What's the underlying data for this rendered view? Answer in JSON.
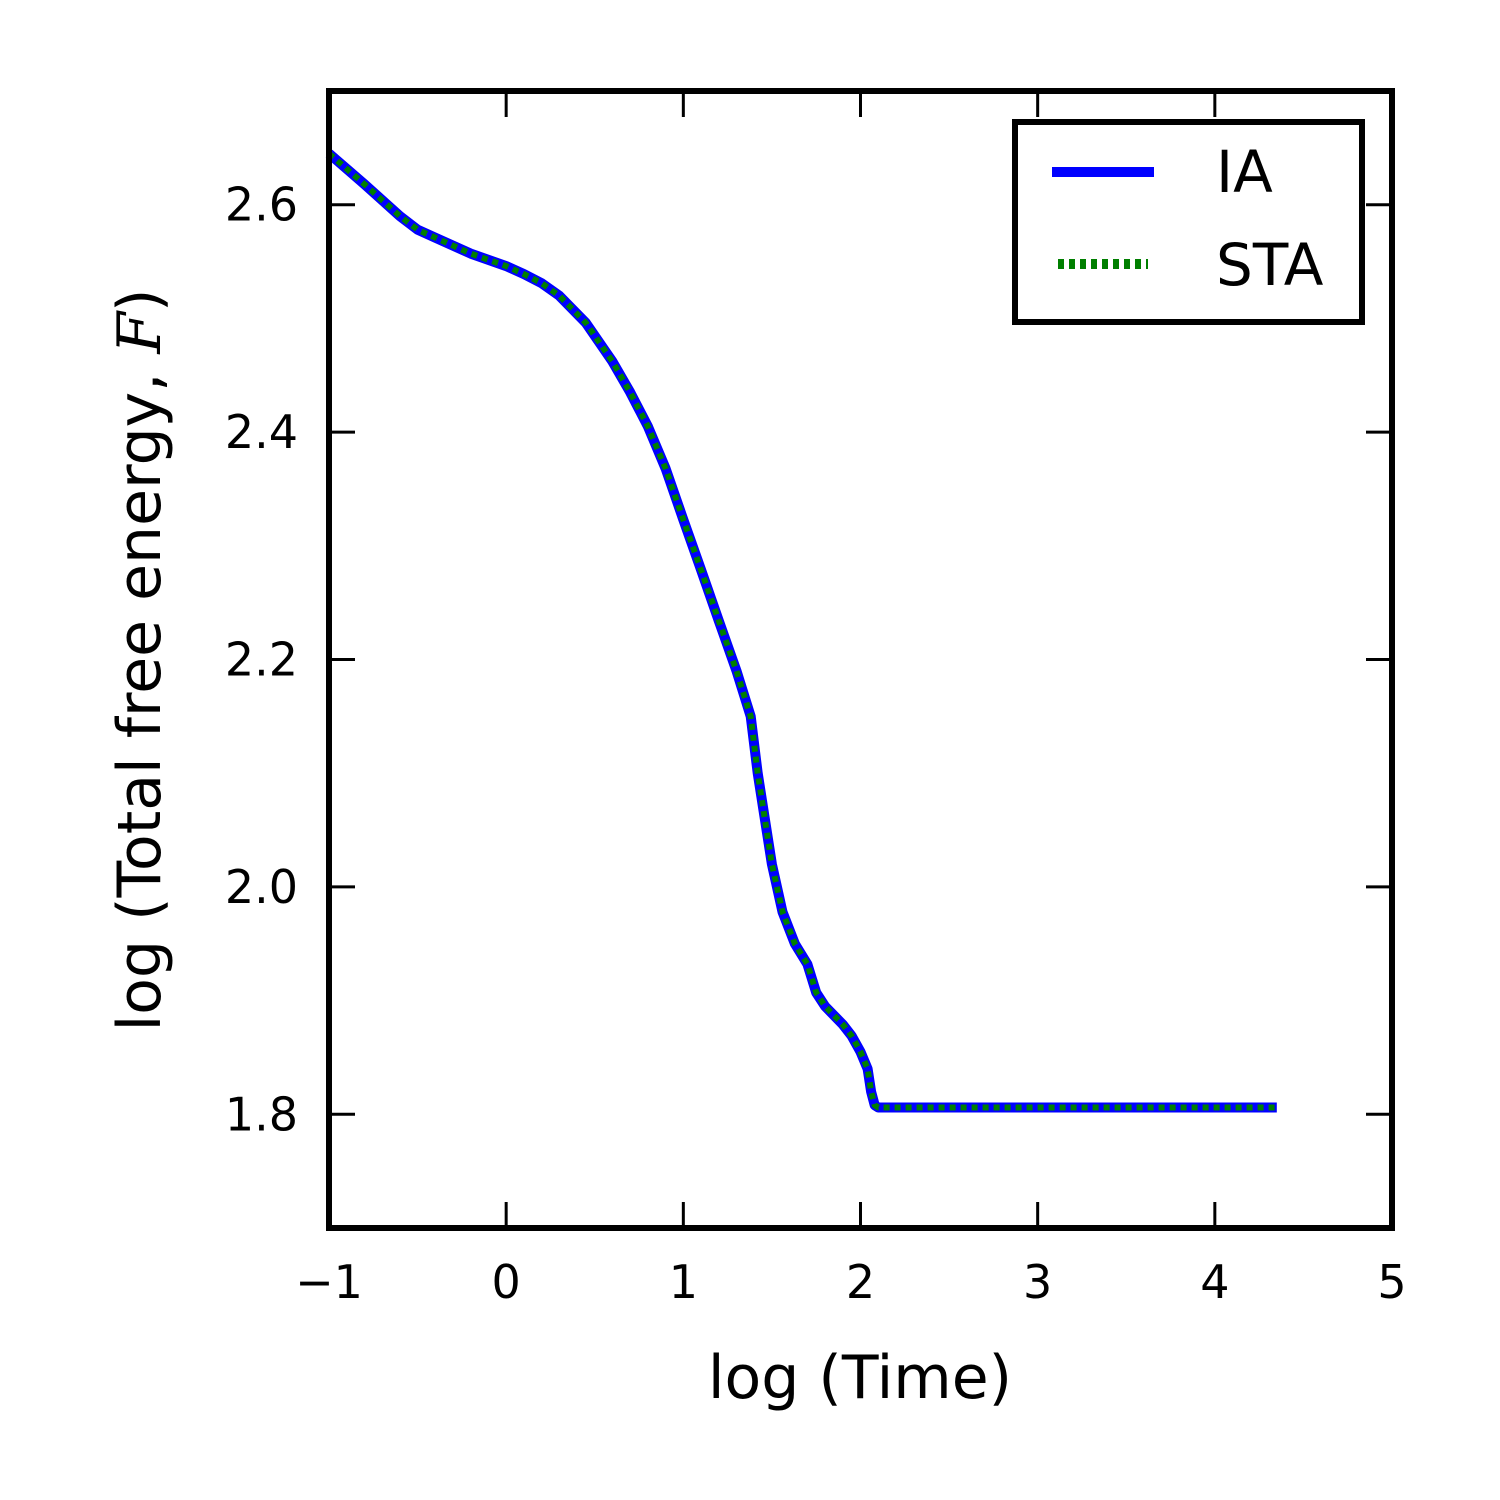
{
  "chart_data": {
    "type": "line",
    "xlabel": "log (Time)",
    "ylabel": "log (Total free energy, F)",
    "xlim": [
      -1,
      5
    ],
    "ylim": [
      1.7,
      2.7
    ],
    "xticks": [
      -1,
      0,
      1,
      2,
      3,
      4,
      5
    ],
    "yticks": [
      1.8,
      2.0,
      2.2,
      2.4,
      2.6
    ],
    "xtick_labels": [
      "−1",
      "0",
      "1",
      "2",
      "3",
      "4",
      "5"
    ],
    "ytick_labels": [
      "1.8",
      "2.0",
      "2.2",
      "2.4",
      "2.6"
    ],
    "ylabel_parts": {
      "prefix": "log (Total free energy, ",
      "math": "F",
      "suffix": ")"
    },
    "grid": false,
    "legend_position": "top-right",
    "series": [
      {
        "name": "IA",
        "style": "solid",
        "color": "#0000ff",
        "x": [
          -1.0,
          -0.8,
          -0.6,
          -0.5,
          -0.4,
          -0.2,
          0.0,
          0.1,
          0.2,
          0.3,
          0.45,
          0.6,
          0.7,
          0.8,
          0.9,
          1.0,
          1.1,
          1.2,
          1.3,
          1.38,
          1.42,
          1.46,
          1.5,
          1.56,
          1.63,
          1.7,
          1.75,
          1.8,
          1.9,
          1.95,
          2.0,
          2.04,
          2.06,
          2.08,
          2.1,
          2.2,
          2.5,
          3.0,
          3.5,
          4.0,
          4.35
        ],
        "values": [
          2.645,
          2.618,
          2.59,
          2.578,
          2.571,
          2.557,
          2.546,
          2.539,
          2.531,
          2.52,
          2.496,
          2.462,
          2.435,
          2.405,
          2.368,
          2.323,
          2.279,
          2.234,
          2.19,
          2.15,
          2.1,
          2.06,
          2.02,
          1.978,
          1.95,
          1.932,
          1.907,
          1.895,
          1.879,
          1.869,
          1.855,
          1.84,
          1.82,
          1.808,
          1.806,
          1.806,
          1.806,
          1.806,
          1.806,
          1.806,
          1.806
        ]
      },
      {
        "name": "STA",
        "style": "dotted",
        "color": "#007f00",
        "x": [
          -1.0,
          -0.8,
          -0.6,
          -0.5,
          -0.4,
          -0.2,
          0.0,
          0.1,
          0.2,
          0.3,
          0.45,
          0.6,
          0.7,
          0.8,
          0.9,
          1.0,
          1.1,
          1.2,
          1.3,
          1.38,
          1.42,
          1.46,
          1.5,
          1.56,
          1.63,
          1.7,
          1.75,
          1.8,
          1.9,
          1.95,
          2.0,
          2.04,
          2.06,
          2.08,
          2.1,
          2.2,
          2.5,
          3.0,
          3.5,
          4.0,
          4.35
        ],
        "values": [
          2.645,
          2.618,
          2.59,
          2.578,
          2.571,
          2.557,
          2.546,
          2.539,
          2.531,
          2.52,
          2.496,
          2.462,
          2.435,
          2.405,
          2.368,
          2.323,
          2.279,
          2.234,
          2.19,
          2.15,
          2.1,
          2.06,
          2.02,
          1.978,
          1.95,
          1.932,
          1.907,
          1.895,
          1.879,
          1.869,
          1.855,
          1.84,
          1.82,
          1.808,
          1.806,
          1.806,
          1.806,
          1.806,
          1.806,
          1.806,
          1.806
        ]
      }
    ]
  }
}
